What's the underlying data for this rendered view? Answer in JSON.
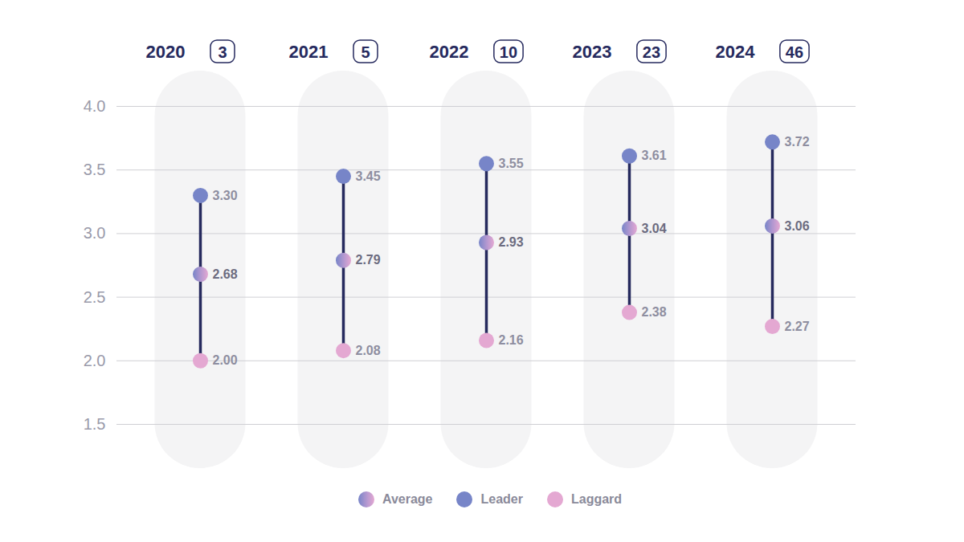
{
  "chart_data": {
    "type": "dumbbell",
    "categories": [
      "2020",
      "2021",
      "2022",
      "2023",
      "2024"
    ],
    "category_counts": [
      3,
      5,
      10,
      23,
      46
    ],
    "series": [
      {
        "name": "Average",
        "color": "#b197d0",
        "values": [
          2.68,
          2.79,
          2.93,
          3.04,
          3.06
        ],
        "value_labels": [
          "2.68",
          "2.79",
          "2.93",
          "3.04",
          "3.06"
        ]
      },
      {
        "name": "Leader",
        "color": "#7785c8",
        "values": [
          3.3,
          3.45,
          3.55,
          3.61,
          3.72
        ],
        "value_labels": [
          "3.30",
          "3.45",
          "3.55",
          "3.61",
          "3.72"
        ]
      },
      {
        "name": "Laggard",
        "color": "#e4a8d2",
        "values": [
          2.0,
          2.08,
          2.16,
          2.38,
          2.27
        ],
        "value_labels": [
          "2.00",
          "2.08",
          "2.16",
          "2.38",
          "2.27"
        ]
      }
    ],
    "ylim": [
      1.5,
      4.0
    ],
    "yticks": [
      1.5,
      {
        "value": 2,
        "label": "2.0"
      },
      2.5,
      {
        "value": 3,
        "label": "3.0"
      },
      3.5,
      {
        "value": 4,
        "label": "4.0"
      }
    ],
    "grid": true,
    "data_labels": true,
    "legend": "bottom"
  }
}
